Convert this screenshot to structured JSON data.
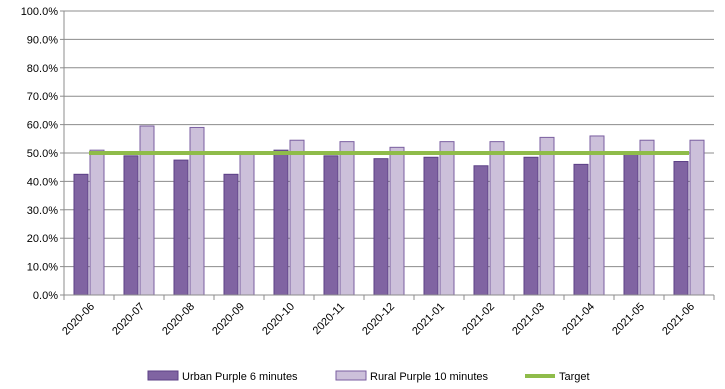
{
  "chart_data": {
    "type": "bar",
    "categories": [
      "2020-06",
      "2020-07",
      "2020-08",
      "2020-09",
      "2020-10",
      "2020-11",
      "2020-12",
      "2021-01",
      "2021-02",
      "2021-03",
      "2021-04",
      "2021-05",
      "2021-06"
    ],
    "series": [
      {
        "name": "Urban Purple 6 minutes",
        "type": "bar",
        "color": "#8064a2",
        "border": "#5b3f86",
        "values": [
          42.5,
          49.0,
          47.5,
          42.5,
          51.0,
          49.0,
          48.0,
          48.5,
          45.5,
          48.5,
          46.0,
          49.5,
          47.0
        ]
      },
      {
        "name": "Rural Purple 10 minutes",
        "type": "bar",
        "color": "#ccc0da",
        "border": "#7a5ea0",
        "values": [
          51.0,
          59.5,
          59.0,
          50.5,
          54.5,
          54.0,
          52.0,
          54.0,
          54.0,
          55.5,
          56.0,
          54.5,
          54.5
        ]
      },
      {
        "name": "Target",
        "type": "line",
        "color": "#8fbc4a",
        "values": [
          50,
          50,
          50,
          50,
          50,
          50,
          50,
          50,
          50,
          50,
          50,
          50,
          50
        ]
      }
    ],
    "y_ticks": [
      "0.0%",
      "10.0%",
      "20.0%",
      "30.0%",
      "40.0%",
      "50.0%",
      "60.0%",
      "70.0%",
      "80.0%",
      "90.0%",
      "100.0%"
    ],
    "ylim": [
      0,
      100
    ],
    "grid": true,
    "legend": "bottom"
  }
}
